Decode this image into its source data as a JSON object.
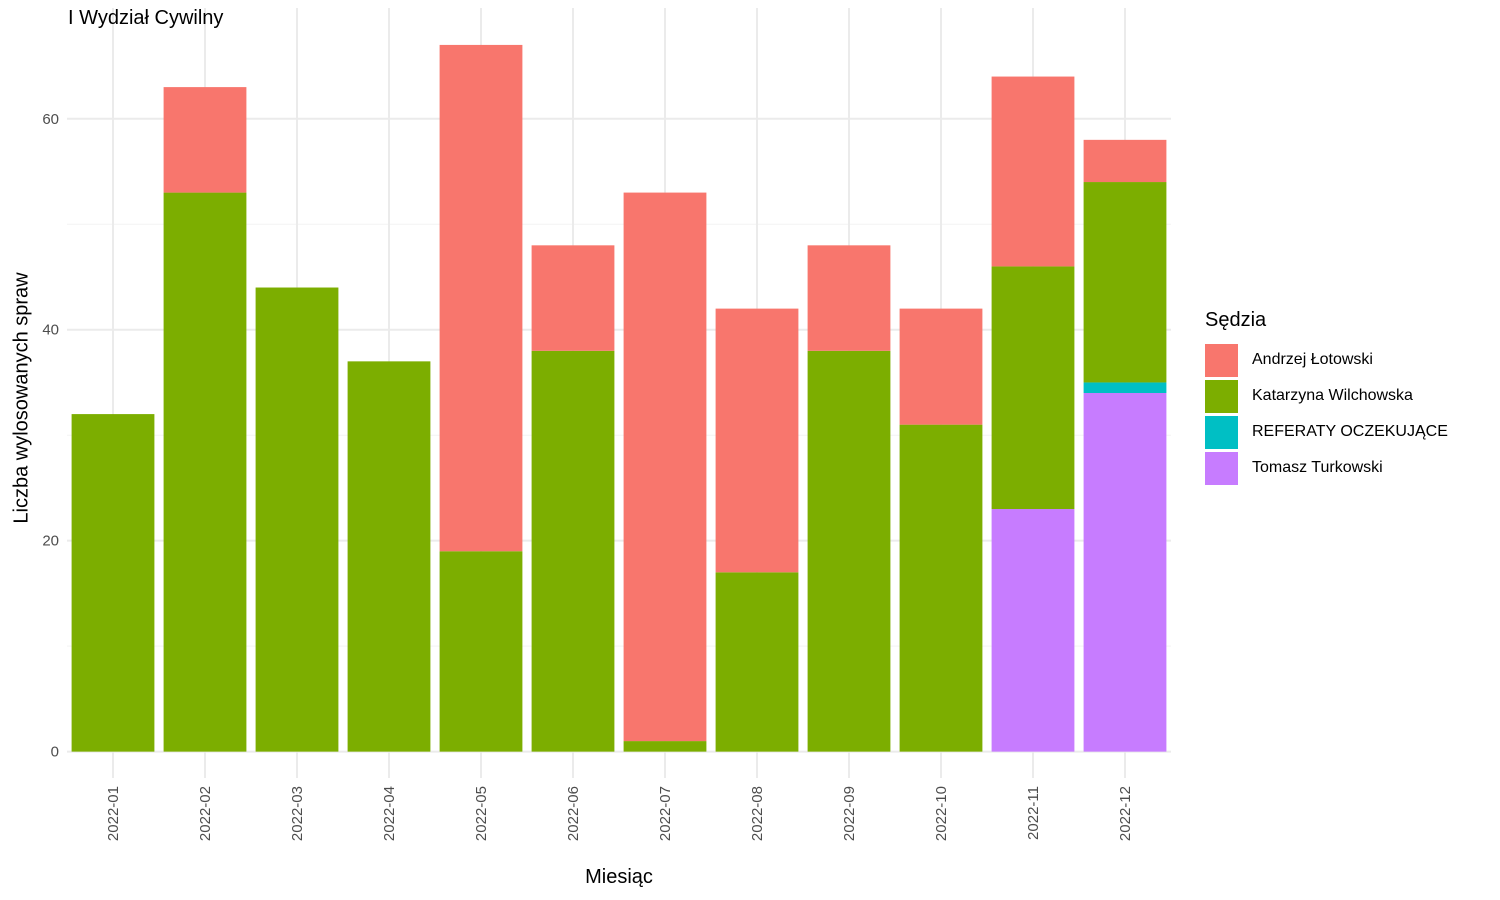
{
  "chart_data": {
    "type": "bar",
    "stacked": true,
    "title": "I Wydział Cywilny",
    "xlabel": "Miesiąc",
    "ylabel": "Liczba wylosowanych spraw",
    "ylim": [
      -2.5,
      70.5
    ],
    "yticks": [
      0,
      20,
      40,
      60
    ],
    "grid": true,
    "legend_position": "right",
    "legend_title": "Sędzia",
    "categories": [
      "2022-01",
      "2022-02",
      "2022-03",
      "2022-04",
      "2022-05",
      "2022-06",
      "2022-07",
      "2022-08",
      "2022-09",
      "2022-10",
      "2022-11",
      "2022-12"
    ],
    "series": [
      {
        "name": "Tomasz Turkowski",
        "color": "#C77CFF",
        "values": [
          0,
          0,
          0,
          0,
          0,
          0,
          0,
          0,
          0,
          0,
          23,
          34
        ]
      },
      {
        "name": "REFERATY OCZEKUJĄCE",
        "color": "#00BFC4",
        "values": [
          0,
          0,
          0,
          0,
          0,
          0,
          0,
          0,
          0,
          0,
          0,
          1
        ]
      },
      {
        "name": "Katarzyna Wilchowska",
        "color": "#7CAE00",
        "values": [
          32,
          53,
          44,
          37,
          19,
          38,
          1,
          17,
          38,
          31,
          23,
          19
        ]
      },
      {
        "name": "Andrzej Łotowski",
        "color": "#F8766D",
        "values": [
          0,
          10,
          0,
          0,
          48,
          10,
          52,
          25,
          10,
          11,
          18,
          4
        ]
      }
    ],
    "legend_order": [
      "Andrzej Łotowski",
      "Katarzyna Wilchowska",
      "REFERATY OCZEKUJĄCE",
      "Tomasz Turkowski"
    ]
  }
}
